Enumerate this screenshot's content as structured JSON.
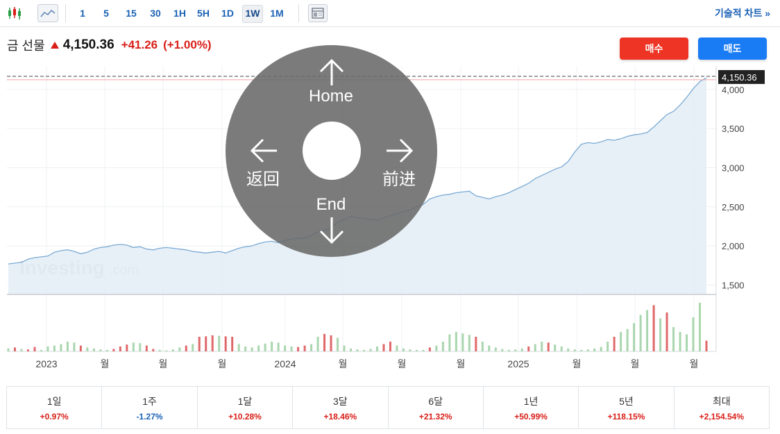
{
  "toolbar": {
    "chart_type_icons": [
      "candlestick-icon",
      "area-chart-icon"
    ],
    "intervals": [
      "1",
      "5",
      "15",
      "30",
      "1H",
      "5H",
      "1D",
      "1W",
      "1M"
    ],
    "active_interval": "1W",
    "layout_icon": "layout-icon",
    "advanced_chart_link": "기술적 차트 »"
  },
  "quote": {
    "name": "금 선물",
    "price": "4,150.36",
    "change": "+41.26",
    "change_pct": "(+1.00%)",
    "direction": "up"
  },
  "buttons": {
    "buy": "매수",
    "sell": "매도"
  },
  "colors": {
    "up": "#d91e18",
    "down": "#1a62b5",
    "buy": "#ee3424",
    "sell": "#1a7cf5",
    "line": "#7aaad4",
    "area": "#e4edf6",
    "vol_up": "#a9d6ae",
    "vol_down": "#e0686a"
  },
  "watermark": {
    "brand": "Investing",
    "suffix": ".com"
  },
  "overlay": {
    "up": "Home",
    "left": "返回",
    "right": "前进",
    "down": "End"
  },
  "chart_data": {
    "type": "area",
    "price_label": "4,150.36",
    "ylim": [
      1380,
      4300
    ],
    "y_ticks": [
      1500,
      2000,
      2500,
      3000,
      3500,
      4000
    ],
    "y_tick_labels": [
      "1,500",
      "2,000",
      "2,500",
      "3,000",
      "3,500",
      "4,000"
    ],
    "x_tick_labels": [
      "2023",
      "월",
      "월",
      "월",
      "2024",
      "월",
      "월",
      "월",
      "2025",
      "월",
      "월",
      "월"
    ],
    "values": [
      1770,
      1780,
      1790,
      1830,
      1850,
      1860,
      1870,
      1920,
      1940,
      1950,
      1930,
      1900,
      1920,
      1960,
      1980,
      1990,
      2010,
      2020,
      2010,
      1980,
      1990,
      1960,
      1950,
      1970,
      1980,
      1970,
      1960,
      1950,
      1930,
      1920,
      1910,
      1920,
      1930,
      1910,
      1940,
      1970,
      1990,
      2000,
      2030,
      2050,
      2060,
      2040,
      2070,
      2090,
      2100,
      2100,
      2140,
      2180,
      2200,
      2230,
      2300,
      2340,
      2380,
      2360,
      2350,
      2340,
      2330,
      2360,
      2390,
      2410,
      2440,
      2460,
      2500,
      2530,
      2600,
      2630,
      2650,
      2660,
      2680,
      2690,
      2700,
      2640,
      2620,
      2600,
      2630,
      2650,
      2680,
      2720,
      2760,
      2800,
      2860,
      2900,
      2940,
      2980,
      3010,
      3080,
      3200,
      3300,
      3320,
      3310,
      3330,
      3360,
      3350,
      3370,
      3400,
      3420,
      3430,
      3450,
      3520,
      3600,
      3680,
      3720,
      3800,
      3900,
      4010,
      4100,
      4150
    ],
    "volume": [
      0.06,
      0.08,
      0.05,
      0.04,
      0.09,
      0.03,
      0.1,
      0.12,
      0.15,
      0.2,
      0.18,
      0.12,
      0.08,
      0.06,
      0.04,
      0.03,
      0.05,
      0.1,
      0.14,
      0.18,
      0.17,
      0.12,
      0.05,
      0.03,
      0.02,
      0.04,
      0.08,
      0.12,
      0.15,
      0.3,
      0.31,
      0.33,
      0.32,
      0.31,
      0.3,
      0.15,
      0.1,
      0.08,
      0.12,
      0.16,
      0.2,
      0.18,
      0.12,
      0.1,
      0.09,
      0.12,
      0.15,
      0.3,
      0.36,
      0.33,
      0.28,
      0.12,
      0.06,
      0.04,
      0.03,
      0.05,
      0.1,
      0.15,
      0.2,
      0.12,
      0.06,
      0.04,
      0.03,
      0.03,
      0.08,
      0.12,
      0.2,
      0.35,
      0.4,
      0.37,
      0.34,
      0.3,
      0.2,
      0.12,
      0.08,
      0.05,
      0.03,
      0.04,
      0.06,
      0.1,
      0.15,
      0.2,
      0.18,
      0.14,
      0.1,
      0.06,
      0.04,
      0.03,
      0.04,
      0.06,
      0.09,
      0.2,
      0.3,
      0.4,
      0.46,
      0.58,
      0.75,
      0.85,
      0.95,
      0.68,
      0.8,
      0.5,
      0.4,
      0.35,
      0.7,
      1.0,
      0.22
    ],
    "volume_down_idx": [
      1,
      3,
      4,
      11,
      16,
      17,
      18,
      21,
      22,
      27,
      29,
      30,
      31,
      33,
      34,
      44,
      45,
      48,
      49,
      57,
      58,
      64,
      71,
      79,
      82,
      92,
      98,
      100,
      106
    ]
  },
  "performance": [
    {
      "label": "1일",
      "value": "+0.97%",
      "dir": "up"
    },
    {
      "label": "1주",
      "value": "-1.27%",
      "dir": "down"
    },
    {
      "label": "1달",
      "value": "+10.28%",
      "dir": "up"
    },
    {
      "label": "3달",
      "value": "+18.46%",
      "dir": "up"
    },
    {
      "label": "6달",
      "value": "+21.32%",
      "dir": "up"
    },
    {
      "label": "1년",
      "value": "+50.99%",
      "dir": "up"
    },
    {
      "label": "5년",
      "value": "+118.15%",
      "dir": "up"
    },
    {
      "label": "최대",
      "value": "+2,154.54%",
      "dir": "up"
    }
  ]
}
